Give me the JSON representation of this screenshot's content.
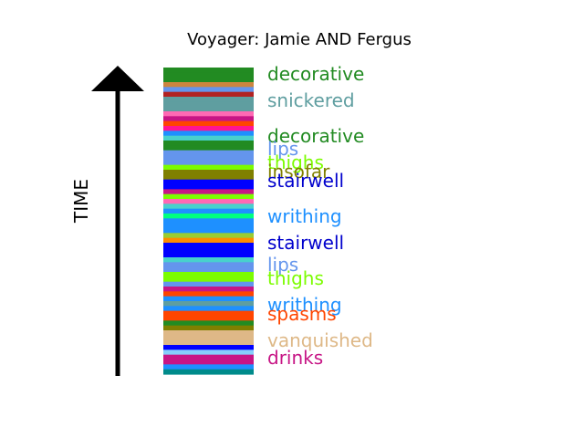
{
  "chart_data": {
    "type": "bar",
    "title": "Voyager: Jamie AND Fergus",
    "ylabel": "TIME",
    "xlabel": "",
    "grid": false,
    "legend": "none",
    "stripes": [
      {
        "color": "#228b22"
      },
      {
        "color": "#228b22"
      },
      {
        "color": "#228b22"
      },
      {
        "color": "#cd853f"
      },
      {
        "color": "#6495ed"
      },
      {
        "color": "#b22222"
      },
      {
        "color": "#5f9ea0"
      },
      {
        "color": "#5f9ea0"
      },
      {
        "color": "#5f9ea0"
      },
      {
        "color": "#ff69b4"
      },
      {
        "color": "#c71585"
      },
      {
        "color": "#ff4500"
      },
      {
        "color": "#ff1493"
      },
      {
        "color": "#1e90ff"
      },
      {
        "color": "#48d1cc"
      },
      {
        "color": "#228b22"
      },
      {
        "color": "#228b22"
      },
      {
        "color": "#6495ed"
      },
      {
        "color": "#6495ed"
      },
      {
        "color": "#6495ed"
      },
      {
        "color": "#7cfc00"
      },
      {
        "color": "#808000"
      },
      {
        "color": "#808000"
      },
      {
        "color": "#0000ff"
      },
      {
        "color": "#0000ff"
      },
      {
        "color": "#c71585"
      },
      {
        "color": "#7cfc00"
      },
      {
        "color": "#ff69b4"
      },
      {
        "color": "#48d1cc"
      },
      {
        "color": "#1e90ff"
      },
      {
        "color": "#00ff7f"
      },
      {
        "color": "#1e90ff"
      },
      {
        "color": "#1e90ff"
      },
      {
        "color": "#1e90ff"
      },
      {
        "color": "#9acd32"
      },
      {
        "color": "#ff8c00"
      },
      {
        "color": "#0000ff"
      },
      {
        "color": "#0000ff"
      },
      {
        "color": "#0000ff"
      },
      {
        "color": "#48d1cc"
      },
      {
        "color": "#6495ed"
      },
      {
        "color": "#6495ed"
      },
      {
        "color": "#7cfc00"
      },
      {
        "color": "#7cfc00"
      },
      {
        "color": "#6495ed"
      },
      {
        "color": "#c71585"
      },
      {
        "color": "#ff4500"
      },
      {
        "color": "#1e90ff"
      },
      {
        "color": "#5f9ea0"
      },
      {
        "color": "#1e90ff"
      },
      {
        "color": "#ff4500"
      },
      {
        "color": "#ff4500"
      },
      {
        "color": "#228b22"
      },
      {
        "color": "#808000"
      },
      {
        "color": "#deb887"
      },
      {
        "color": "#deb887"
      },
      {
        "color": "#deb887"
      },
      {
        "color": "#0000ff"
      },
      {
        "color": "#87cefa"
      },
      {
        "color": "#c71585"
      },
      {
        "color": "#c71585"
      },
      {
        "color": "#1e90ff"
      },
      {
        "color": "#008b8b"
      }
    ],
    "labels": [
      {
        "text": "decorative",
        "color": "#228b22"
      },
      {
        "text": "snickered",
        "color": "#5f9ea0"
      },
      {
        "text": "decorative",
        "color": "#228b22"
      },
      {
        "text": "lips",
        "color": "#6495ed"
      },
      {
        "text": "thighs",
        "color": "#7cfc00"
      },
      {
        "text": "insofar",
        "color": "#808000"
      },
      {
        "text": "stairwell",
        "color": "#0000cd"
      },
      {
        "text": "writhing",
        "color": "#1e90ff"
      },
      {
        "text": "stairwell",
        "color": "#0000cd"
      },
      {
        "text": "lips",
        "color": "#6495ed"
      },
      {
        "text": "thighs",
        "color": "#7cfc00"
      },
      {
        "text": "writhing",
        "color": "#1e90ff"
      },
      {
        "text": "spasms",
        "color": "#ff4500"
      },
      {
        "text": "vanquished",
        "color": "#deb887"
      },
      {
        "text": "drinks",
        "color": "#c71585"
      }
    ]
  }
}
